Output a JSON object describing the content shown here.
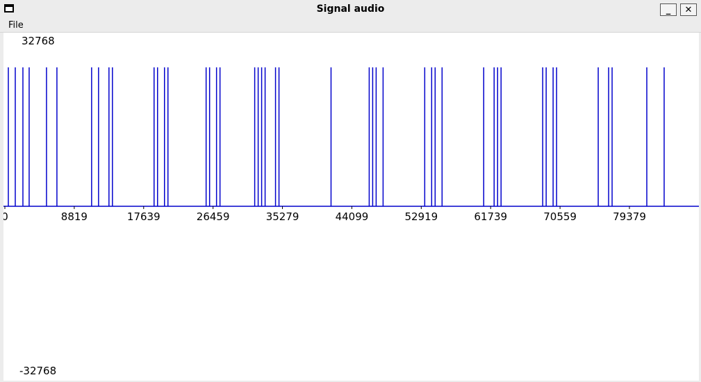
{
  "window": {
    "title": "Signal audio",
    "minimize_label": "_",
    "close_label": "✕"
  },
  "menu": {
    "file_label": "File"
  },
  "chart_data": {
    "type": "line",
    "y_max_label": "32768",
    "y_min_label": "-32768",
    "ylim": [
      -32768,
      32768
    ],
    "xlim": [
      0,
      88200
    ],
    "x_ticks": [
      0,
      8819,
      17639,
      26459,
      35279,
      44099,
      52919,
      61739,
      70559,
      79379
    ],
    "x_tick_labels": [
      "0",
      "8819",
      "17639",
      "26459",
      "35279",
      "44099",
      "52919",
      "61739",
      "70559",
      "79379"
    ],
    "series_color": "#0000cc",
    "baseline": 0,
    "spike_value": 26000,
    "spikes_x": [
      441,
      1323,
      2293,
      3087,
      5292,
      6615,
      11025,
      11907,
      13230,
      13671,
      18963,
      19404,
      20286,
      20727,
      25578,
      26019,
      26901,
      27342,
      31752,
      32193,
      32634,
      33075,
      34398,
      34839,
      41454,
      46305,
      46746,
      47187,
      48069,
      53361,
      54243,
      54684,
      55566,
      60858,
      62181,
      62622,
      63063,
      68355,
      68796,
      69678,
      70119,
      75411,
      76734,
      77175,
      81585,
      83790
    ]
  }
}
